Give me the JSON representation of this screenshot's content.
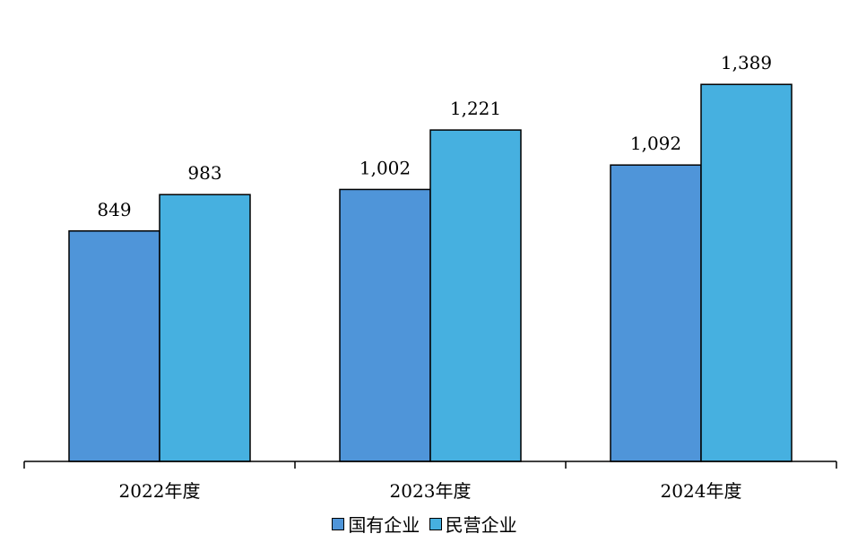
{
  "chart_data": {
    "type": "bar",
    "categories": [
      "2022年度",
      "2023年度",
      "2024年度"
    ],
    "series": [
      {
        "name": "国有企业",
        "values": [
          849,
          1002,
          1092
        ],
        "labels": [
          "849",
          "1,002",
          "1,092"
        ],
        "color": "#4F95D9"
      },
      {
        "name": "民营企业",
        "values": [
          983,
          1221,
          1389
        ],
        "labels": [
          "983",
          "1,221",
          "1,389"
        ],
        "color": "#46B0E0"
      }
    ],
    "title": "",
    "xlabel": "",
    "ylabel": "",
    "ylim": [
      0,
      1700
    ],
    "grid": false,
    "legend": "bottom"
  }
}
